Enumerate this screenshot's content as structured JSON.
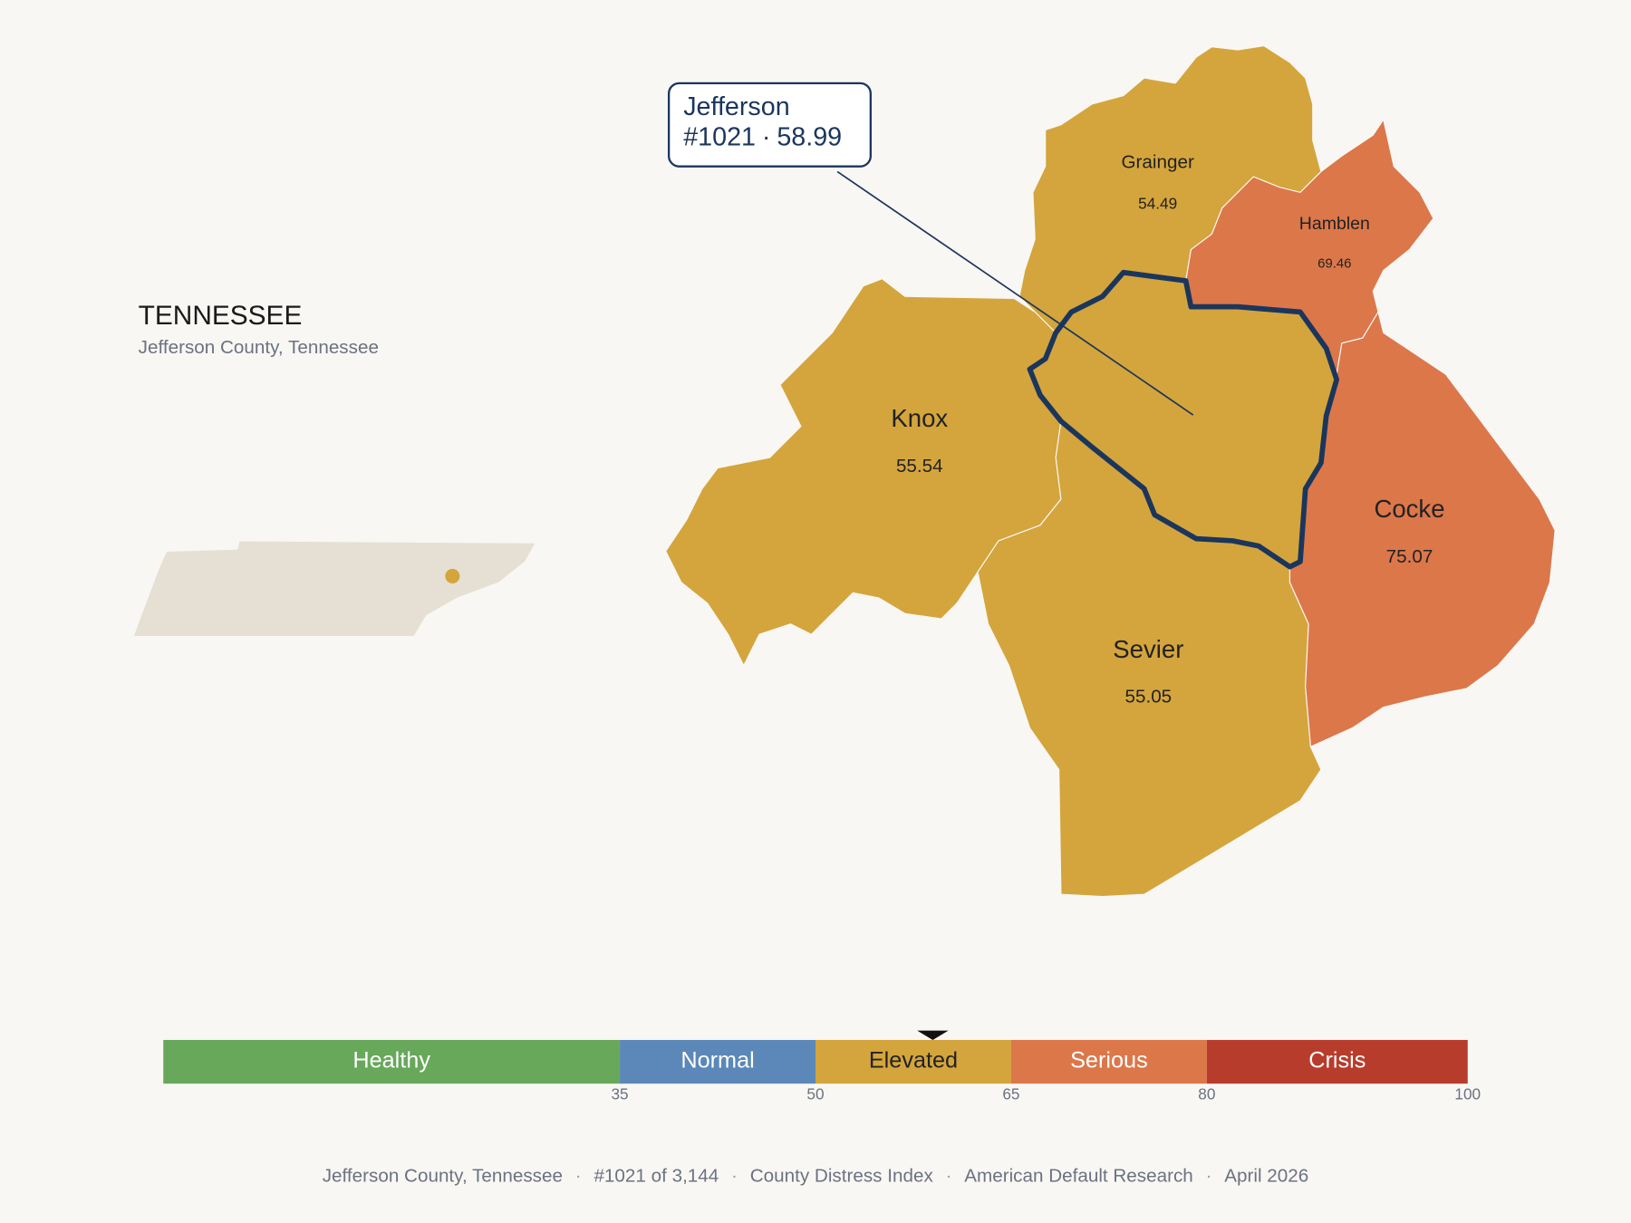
{
  "header": {
    "title": "TENNESSEE",
    "subtitle": "Jefferson County, Tennessee"
  },
  "callout": {
    "name": "Jefferson",
    "rank": "#1021",
    "separator": "·",
    "value": 58.99
  },
  "counties": [
    {
      "name": "Grainger",
      "value": 54.49
    },
    {
      "name": "Hamblen",
      "value": 69.46
    },
    {
      "name": "Knox",
      "value": 55.54
    },
    {
      "name": "Sevier",
      "value": 55.05
    },
    {
      "name": "Cocke",
      "value": 75.07
    }
  ],
  "scale": {
    "lim": [
      0,
      100
    ],
    "ticks": [
      35,
      50,
      65,
      80,
      100
    ],
    "bands": [
      {
        "label": "Healthy",
        "color": "#67a85a",
        "text_color": "#ffffff"
      },
      {
        "label": "Normal",
        "color": "#5b88b8",
        "text_color": "#ffffff"
      },
      {
        "label": "Elevated",
        "color": "#d4a53c",
        "text_color": "#222222"
      },
      {
        "label": "Serious",
        "color": "#dc774a",
        "text_color": "#ffffff"
      },
      {
        "label": "Crisis",
        "color": "#b83c2c",
        "text_color": "#ffffff"
      }
    ]
  },
  "footer": [
    "Jefferson County, Tennessee",
    "#1021 of 3,144",
    "County Distress Index",
    "American Default Research",
    "April 2026"
  ]
}
